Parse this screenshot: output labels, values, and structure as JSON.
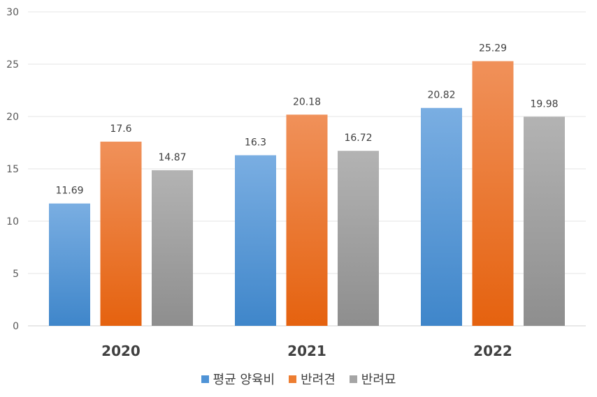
{
  "chart_data": {
    "type": "bar",
    "categories": [
      "2020",
      "2021",
      "2022"
    ],
    "series": [
      {
        "name": "평균 양육비",
        "values": [
          11.69,
          16.3,
          20.82
        ],
        "color_top": "#7aaee2",
        "color_bottom": "#3f86ca"
      },
      {
        "name": "반려견",
        "values": [
          17.6,
          20.18,
          25.29
        ],
        "color_top": "#f0915a",
        "color_bottom": "#e5620f"
      },
      {
        "name": "반려묘",
        "values": [
          14.87,
          16.72,
          19.98
        ],
        "color_top": "#b3b3b3",
        "color_bottom": "#8e8e8e"
      }
    ],
    "ylim": [
      0,
      30
    ],
    "yticks": [
      0,
      5,
      10,
      15,
      20,
      25,
      30
    ],
    "grid": true,
    "legend_position": "bottom"
  }
}
